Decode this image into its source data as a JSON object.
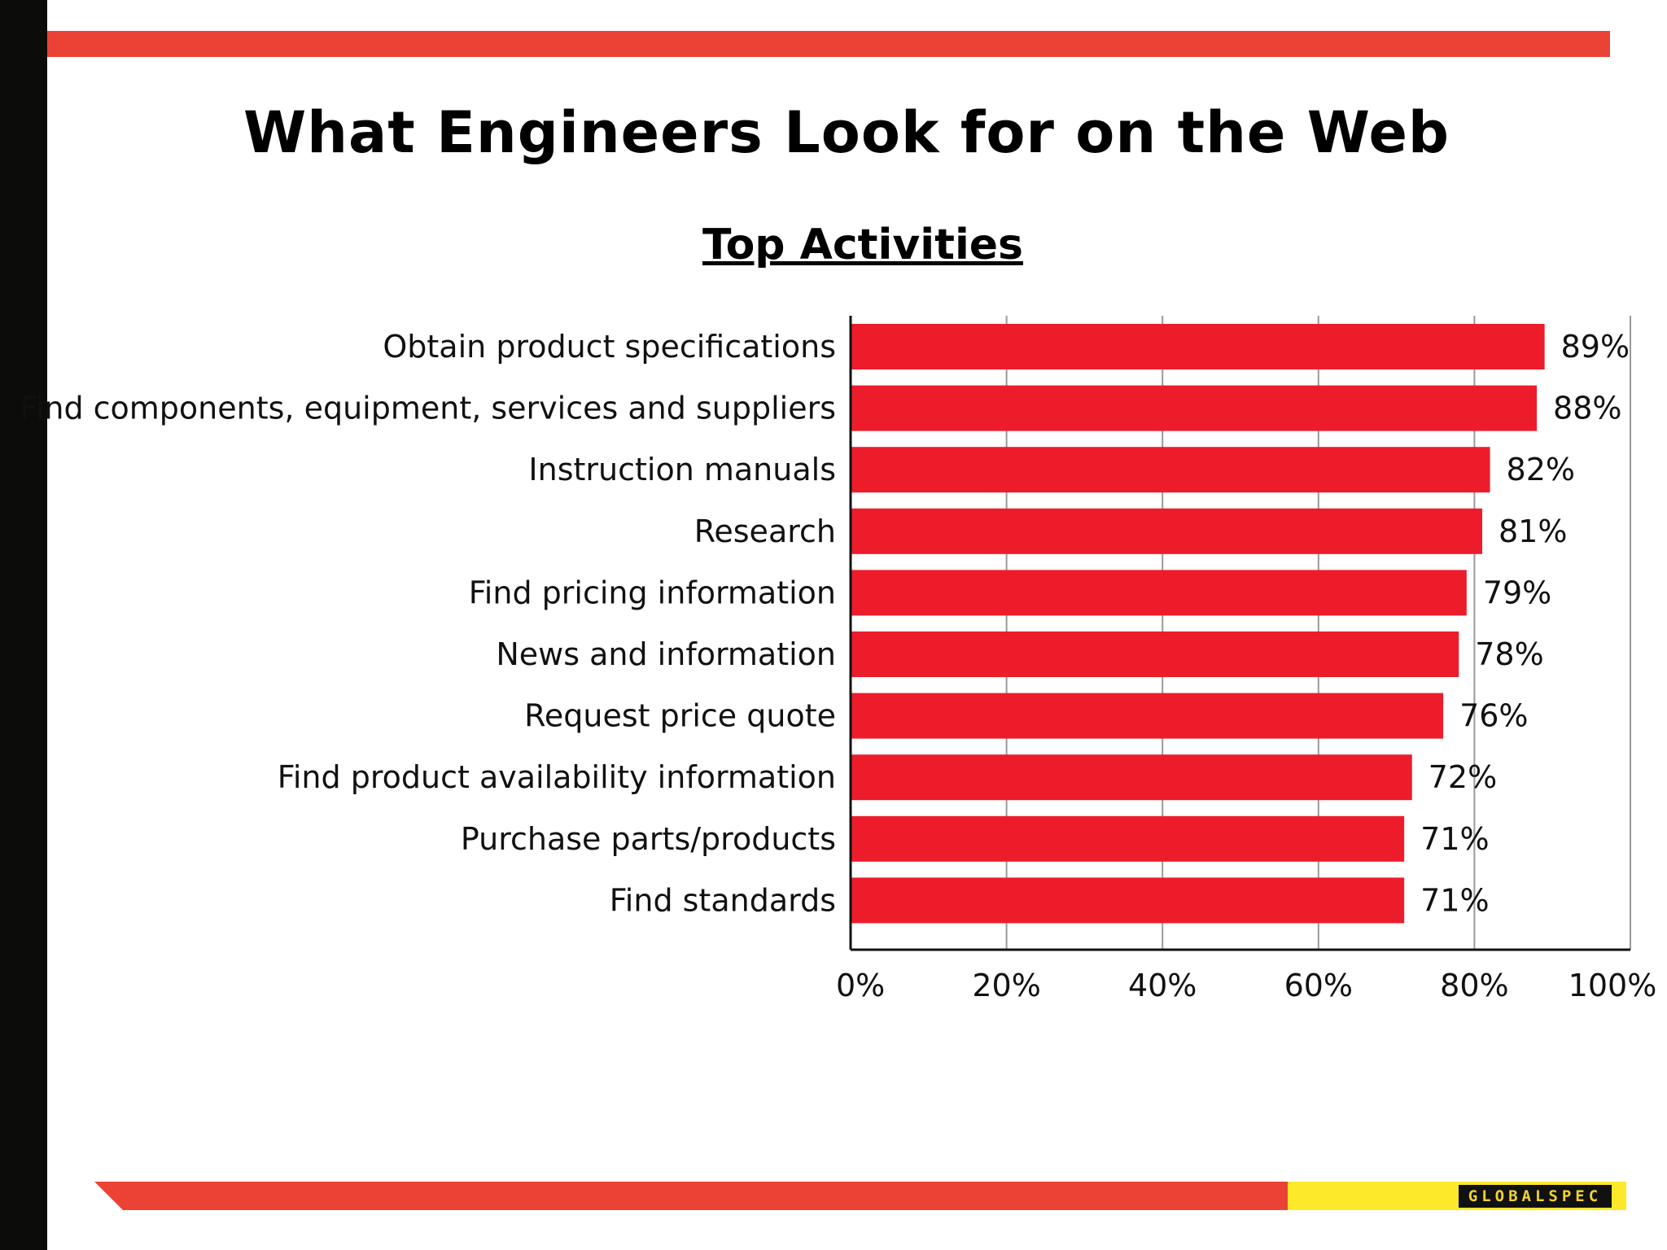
{
  "slide": {
    "title": "What Engineers Look for on the Web",
    "subtitle": "Top Activities",
    "logo": "GLOBALSPEC"
  },
  "colors": {
    "bar": "#ed1c2a",
    "accent_bar": "#ea4335",
    "logo_yellow": "#fde92a",
    "left_band": "#0c0c0a",
    "grid": "#999999"
  },
  "chart_data": {
    "type": "bar",
    "orientation": "horizontal",
    "title": "Top Activities",
    "categories": [
      "Obtain product specifications",
      "Find components, equipment, services and suppliers",
      "Instruction manuals",
      "Research",
      "Find pricing information",
      "News and information",
      "Request price quote",
      "Find product availability information",
      "Purchase parts/products",
      "Find standards"
    ],
    "values": [
      89,
      88,
      82,
      81,
      79,
      78,
      76,
      72,
      71,
      71
    ],
    "value_labels": [
      "89%",
      "88%",
      "82%",
      "81%",
      "79%",
      "78%",
      "76%",
      "72%",
      "71%",
      "71%"
    ],
    "xlim": [
      0,
      100
    ],
    "xticks": [
      0,
      20,
      40,
      60,
      80,
      100
    ],
    "xtick_labels": [
      "0%",
      "20%",
      "40%",
      "60%",
      "80%",
      "100%"
    ],
    "grid": true,
    "legend": "none"
  }
}
